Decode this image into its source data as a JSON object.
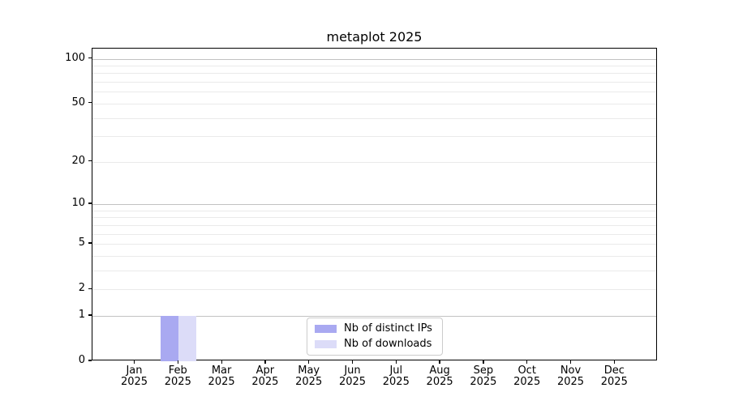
{
  "chart_data": {
    "type": "bar",
    "title": "metaplot 2025",
    "categories": [
      "Jan 2025",
      "Feb 2025",
      "Mar 2025",
      "Apr 2025",
      "May 2025",
      "Jun 2025",
      "Jul 2025",
      "Aug 2025",
      "Sep 2025",
      "Oct 2025",
      "Nov 2025",
      "Dec 2025"
    ],
    "series": [
      {
        "name": "Nb of distinct IPs",
        "color": "#a9a9f1",
        "values": [
          0,
          1,
          0,
          0,
          0,
          0,
          0,
          0,
          0,
          0,
          0,
          0
        ]
      },
      {
        "name": "Nb of downloads",
        "color": "#dcdcf8",
        "values": [
          0,
          1,
          0,
          0,
          0,
          0,
          0,
          0,
          0,
          0,
          0,
          0
        ]
      }
    ],
    "xlabel": "",
    "ylabel": "",
    "yscale": "log10(1+y)",
    "ylim": [
      0,
      117
    ],
    "ytick_labels": [
      0,
      1,
      2,
      5,
      10,
      20,
      50,
      100
    ],
    "grid_major_at": [
      1,
      10,
      100
    ],
    "grid_minor_at": [
      2,
      3,
      4,
      5,
      6,
      7,
      8,
      9,
      20,
      30,
      40,
      50,
      60,
      70,
      80,
      90
    ],
    "grid": "horizontal",
    "legend_position": "lower center"
  },
  "colors": {
    "background": "#ffffff",
    "spine": "#000000",
    "text": "#000000",
    "grid_major": "#c2c2c2",
    "grid_minor": "#eaeaea",
    "legend_border": "#cccccc",
    "bar_distinct_ips": "#a9a9f1",
    "bar_downloads": "#dcdcf8"
  }
}
